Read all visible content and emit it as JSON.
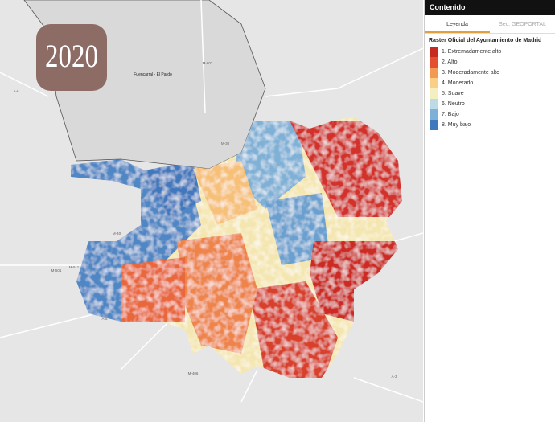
{
  "badge": "2020",
  "map": {
    "labels": [
      {
        "text": "Fuencarral - El Pardo"
      },
      {
        "text": "M-40"
      },
      {
        "text": "M-30"
      },
      {
        "text": "M-511"
      },
      {
        "text": "M-501"
      },
      {
        "text": "A-5"
      },
      {
        "text": "M-406"
      },
      {
        "text": "A-3"
      },
      {
        "text": "M-607"
      },
      {
        "text": "A-6"
      }
    ]
  },
  "sidebar": {
    "header": "Contenido",
    "tabs": [
      "Leyenda",
      "Sec. GEOPORTAL"
    ],
    "legend": {
      "title": "Raster Oficial del Ayuntamiento de Madrid",
      "items": [
        {
          "label": "1. Extremadamente alto",
          "color": "#c62a20"
        },
        {
          "label": "2. Alto",
          "color": "#e4502f"
        },
        {
          "label": "3. Moderadamente alto",
          "color": "#f39a52"
        },
        {
          "label": "4. Moderado",
          "color": "#f9cf86"
        },
        {
          "label": "5. Suave",
          "color": "#f4efc0"
        },
        {
          "label": "6. Neutro",
          "color": "#bcdbe6"
        },
        {
          "label": "7. Bajo",
          "color": "#7fb0d6"
        },
        {
          "label": "8. Muy bajo",
          "color": "#3f78bd"
        }
      ]
    }
  }
}
